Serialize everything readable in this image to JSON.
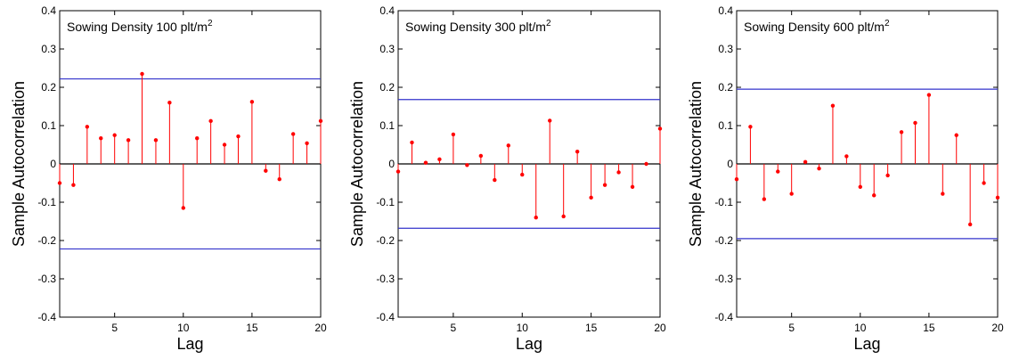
{
  "chart_data": [
    {
      "type": "stem",
      "title": "Sowing Density 100 plt/m",
      "title_sup": "2",
      "xlabel": "Lag",
      "ylabel": "Sample Autocorrelation",
      "x": [
        1,
        2,
        3,
        4,
        5,
        6,
        7,
        8,
        9,
        10,
        11,
        12,
        13,
        14,
        15,
        16,
        17,
        18,
        19,
        20
      ],
      "values": [
        -0.05,
        -0.055,
        0.097,
        0.067,
        0.075,
        0.062,
        0.235,
        0.062,
        0.16,
        -0.115,
        0.067,
        0.112,
        0.05,
        0.072,
        0.162,
        -0.018,
        -0.04,
        0.078,
        0.054,
        0.112
      ],
      "color": "#ff0000",
      "bounds": [
        0.222,
        -0.222
      ],
      "bounds_color": "#3333cc",
      "xlim": [
        1,
        20
      ],
      "xticks": [
        5,
        10,
        15,
        20
      ],
      "ylim": [
        -0.4,
        0.4
      ],
      "yticks": [
        -0.4,
        -0.3,
        -0.2,
        -0.1,
        0,
        0.1,
        0.2,
        0.3,
        0.4
      ]
    },
    {
      "type": "stem",
      "title": "Sowing Density 300 plt/m",
      "title_sup": "2",
      "xlabel": "Lag",
      "ylabel": "Sample Autocorrelation",
      "x": [
        1,
        2,
        3,
        4,
        5,
        6,
        7,
        8,
        9,
        10,
        11,
        12,
        13,
        14,
        15,
        16,
        17,
        18,
        19,
        20
      ],
      "values": [
        -0.02,
        0.056,
        0.003,
        0.012,
        0.077,
        -0.003,
        0.021,
        -0.042,
        0.048,
        -0.028,
        -0.14,
        0.113,
        -0.137,
        0.032,
        -0.088,
        -0.055,
        -0.022,
        -0.06,
        0.0,
        0.092
      ],
      "color": "#ff0000",
      "bounds": [
        0.168,
        -0.168
      ],
      "bounds_color": "#3333cc",
      "xlim": [
        1,
        20
      ],
      "xticks": [
        5,
        10,
        15,
        20
      ],
      "ylim": [
        -0.4,
        0.4
      ],
      "yticks": [
        -0.4,
        -0.3,
        -0.2,
        -0.1,
        0,
        0.1,
        0.2,
        0.3,
        0.4
      ]
    },
    {
      "type": "stem",
      "title": "Sowing Density 600 plt/m",
      "title_sup": "2",
      "xlabel": "Lag",
      "ylabel": "Sample Autocorrelation",
      "x": [
        1,
        2,
        3,
        4,
        5,
        6,
        7,
        8,
        9,
        10,
        11,
        12,
        13,
        14,
        15,
        16,
        17,
        18,
        19,
        20
      ],
      "values": [
        -0.04,
        0.097,
        -0.092,
        -0.02,
        -0.078,
        0.005,
        -0.012,
        0.152,
        0.02,
        -0.06,
        -0.082,
        -0.03,
        0.083,
        0.107,
        0.18,
        -0.078,
        0.075,
        -0.158,
        -0.05,
        -0.088
      ],
      "color": "#ff0000",
      "bounds": [
        0.195,
        -0.195
      ],
      "bounds_color": "#3333cc",
      "xlim": [
        1,
        20
      ],
      "xticks": [
        5,
        10,
        15,
        20
      ],
      "ylim": [
        -0.4,
        0.4
      ],
      "yticks": [
        -0.4,
        -0.3,
        -0.2,
        -0.1,
        0,
        0.1,
        0.2,
        0.3,
        0.4
      ]
    }
  ]
}
